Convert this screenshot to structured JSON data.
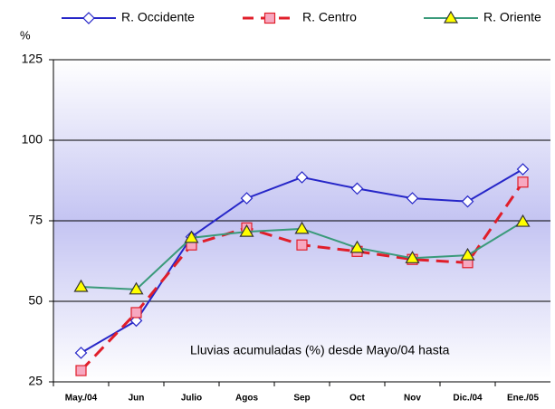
{
  "chart_data": {
    "type": "line",
    "y_label": "%",
    "annotation": "Lluvias acumuladas (%) desde Mayo/04 hasta",
    "categories": [
      "May./04",
      "Jun",
      "Julio",
      "Agos",
      "Sep",
      "Oct",
      "Nov",
      "Dic./04",
      "Ene./05"
    ],
    "series": [
      {
        "name": "R. Occidente",
        "color": "#2626c8",
        "marker": "diamond",
        "marker_fill": "#ffffff",
        "dashed": false,
        "values": [
          34,
          44,
          70,
          82,
          88.5,
          85,
          82,
          81,
          91
        ]
      },
      {
        "name": "R. Centro",
        "color": "#e01e2a",
        "marker": "square",
        "marker_fill": "#f7a8c0",
        "dashed": true,
        "values": [
          28.5,
          46.5,
          67.5,
          72.8,
          67.5,
          65.5,
          63,
          62,
          87
        ]
      },
      {
        "name": "R. Oriente",
        "color": "#3a9a7a",
        "marker": "triangle",
        "marker_fill": "#ffff00",
        "dashed": false,
        "values": [
          54.5,
          53.7,
          69.7,
          71.6,
          72.5,
          66.6,
          63.4,
          64.3,
          74.7
        ]
      }
    ],
    "ylim": [
      25,
      125
    ],
    "yticks": [
      25,
      50,
      75,
      100,
      125
    ],
    "grid": true
  }
}
